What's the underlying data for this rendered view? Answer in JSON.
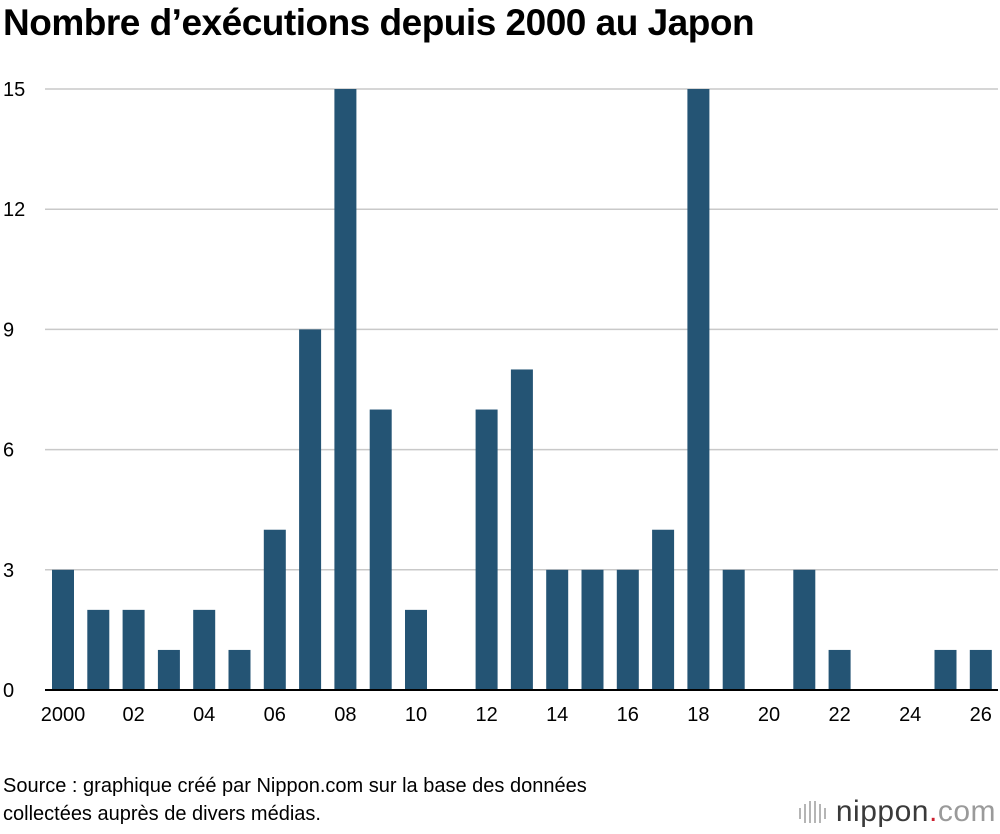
{
  "title": "Nombre d’exécutions depuis 2000 au Japon",
  "source": {
    "line1": "Source : graphique créé par Nippon.com sur la base des données",
    "line2": "collectées auprès de divers médias."
  },
  "logo": {
    "name": "nippon",
    "dot": ".",
    "suffix": "com"
  },
  "colors": {
    "bar": "#245474",
    "grid": "#c9c9c9",
    "axis": "#000000"
  },
  "chart_data": {
    "type": "bar",
    "title": "Nombre d’exécutions depuis 2000 au Japon",
    "categories": [
      "2000",
      "2001",
      "2002",
      "2003",
      "2004",
      "2005",
      "2006",
      "2007",
      "2008",
      "2009",
      "2010",
      "2011",
      "2012",
      "2013",
      "2014",
      "2015",
      "2016",
      "2017",
      "2018",
      "2019",
      "2020",
      "2021",
      "2022",
      "2023",
      "2024",
      "2025",
      "2026"
    ],
    "values": [
      3,
      2,
      2,
      1,
      2,
      1,
      4,
      9,
      15,
      7,
      2,
      0,
      7,
      8,
      3,
      3,
      3,
      4,
      15,
      3,
      0,
      3,
      1,
      0,
      0,
      1,
      1
    ],
    "x_tick_labels": [
      "2000",
      "02",
      "04",
      "06",
      "08",
      "10",
      "12",
      "14",
      "16",
      "18",
      "20",
      "22",
      "24",
      "26"
    ],
    "y_ticks": [
      0,
      3,
      6,
      9,
      12,
      15
    ],
    "ylim": [
      0,
      15
    ],
    "xlabel": "",
    "ylabel": "",
    "grid": true,
    "legend": "none"
  }
}
